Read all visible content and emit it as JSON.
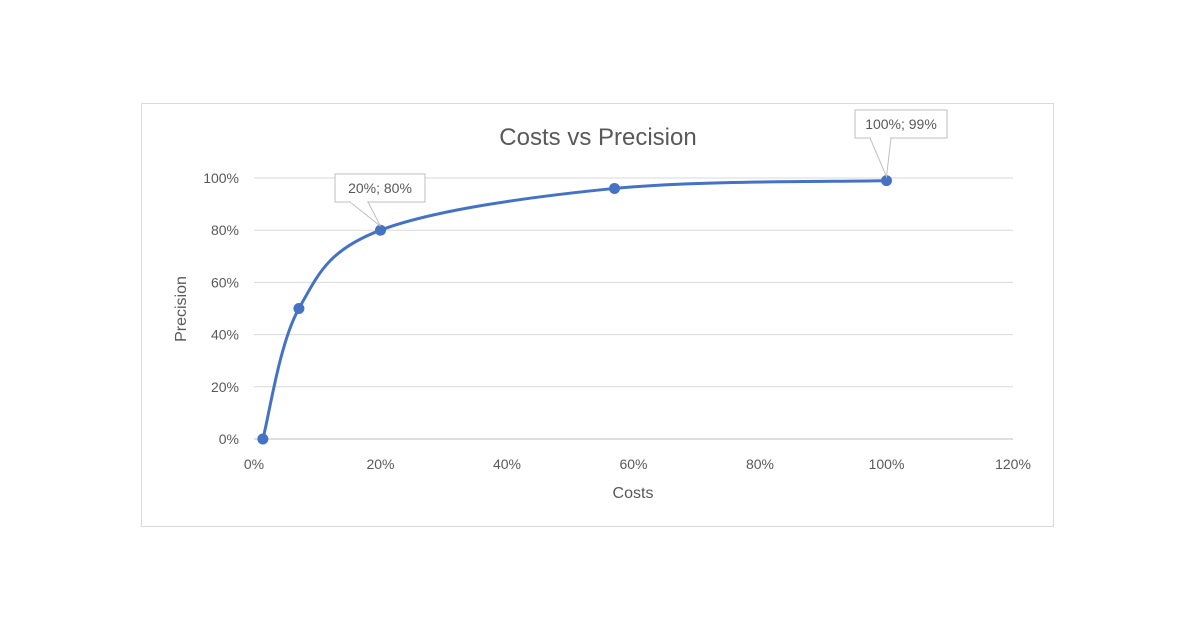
{
  "chart_data": {
    "type": "line",
    "title": "Costs vs Precision",
    "xlabel": "Costs",
    "ylabel": "Precision",
    "xlim": [
      0,
      1.2
    ],
    "ylim": [
      0,
      1.0
    ],
    "x_ticks": [
      "0%",
      "20%",
      "40%",
      "60%",
      "80%",
      "100%",
      "120%"
    ],
    "y_ticks": [
      "0%",
      "20%",
      "40%",
      "60%",
      "80%",
      "100%"
    ],
    "grid": "horizontal",
    "smoothed": true,
    "markers": true,
    "series": [
      {
        "name": "Precision",
        "color": "#4472c4",
        "x": [
          0.014,
          0.071,
          0.2,
          0.57,
          1.0
        ],
        "y": [
          0.0,
          0.5,
          0.8,
          0.96,
          0.99
        ]
      }
    ],
    "annotations": [
      {
        "label": "20%; 80%",
        "x": 0.2,
        "y": 0.8
      },
      {
        "label": "100%; 99%",
        "x": 1.0,
        "y": 0.99
      }
    ],
    "legend": "none"
  },
  "colors": {
    "series": "#4472c4",
    "grid": "#d9d9d9",
    "text": "#595959",
    "border": "#d9d9d9"
  }
}
